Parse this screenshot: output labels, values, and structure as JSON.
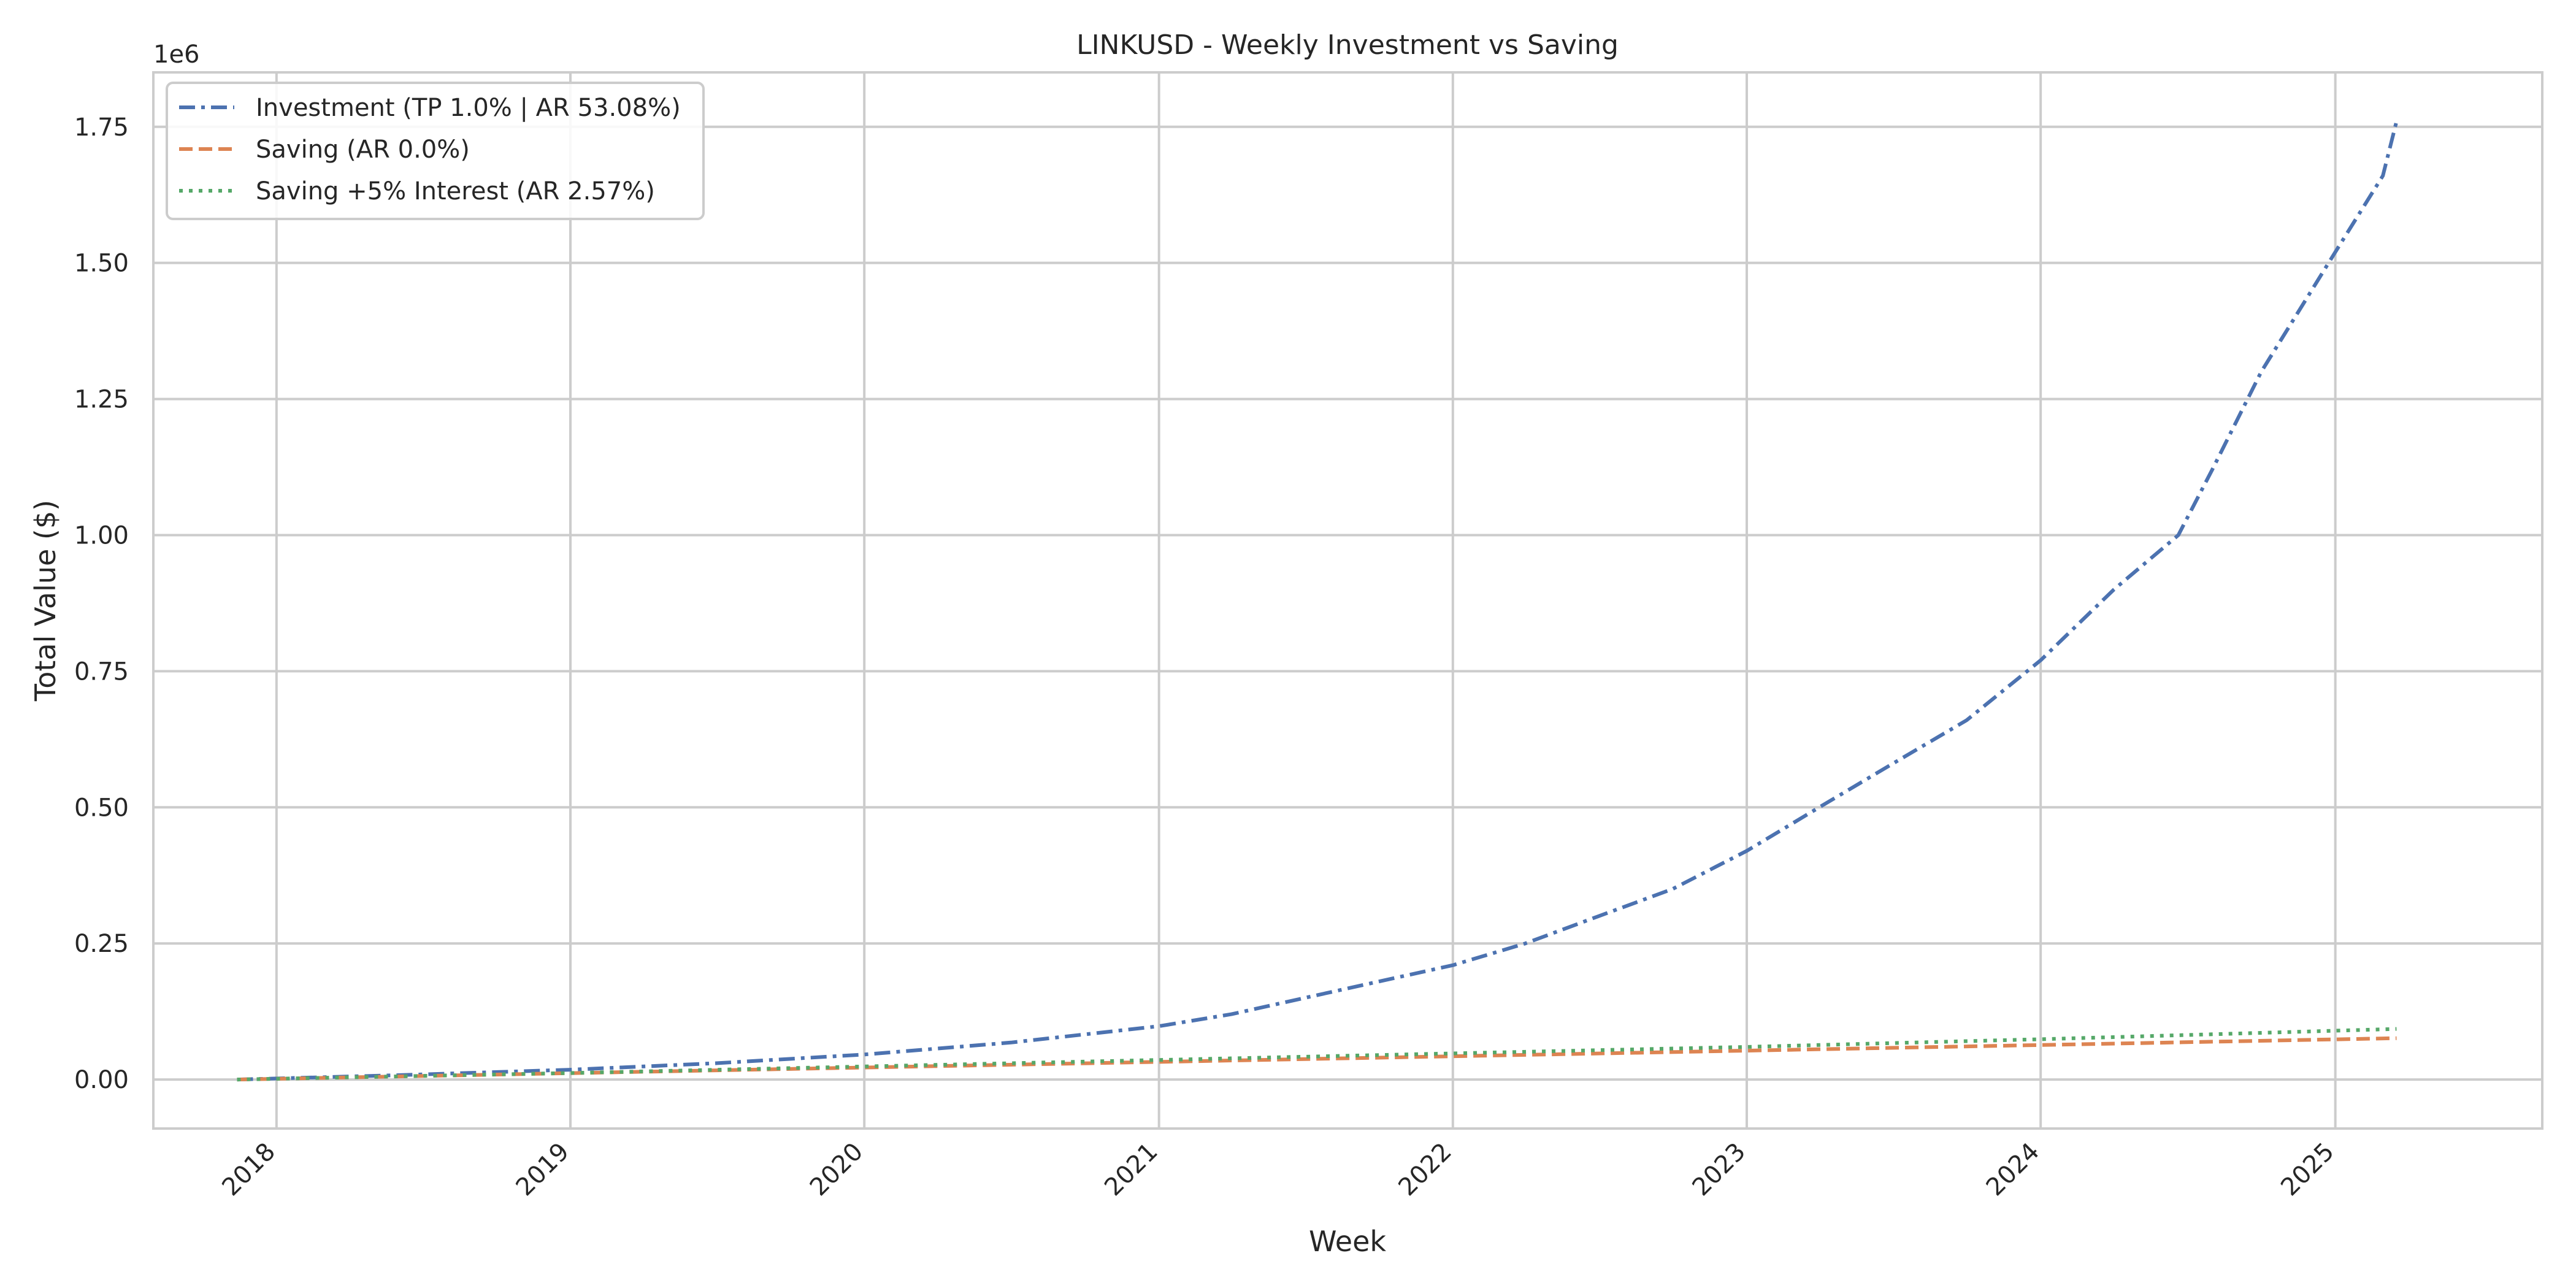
{
  "chart_data": {
    "type": "line",
    "title": "LINKUSD - Weekly Investment vs Saving",
    "xlabel": "Week",
    "ylabel": "Total Value ($)",
    "y_offset_text": "1e6",
    "xlim": [
      "2017-08-01",
      "2025-09-15"
    ],
    "ylim": [
      -0.09,
      1.85
    ],
    "x_ticks": [
      "2018",
      "2019",
      "2020",
      "2021",
      "2022",
      "2023",
      "2024",
      "2025"
    ],
    "y_ticks": [
      "0.00",
      "0.25",
      "0.50",
      "0.75",
      "1.00",
      "1.25",
      "1.50",
      "1.75"
    ],
    "grid": true,
    "legend_position": "top-left",
    "series": [
      {
        "name": "Investment (TP 1.0% | AR 53.08%)",
        "color": "#4c72b0",
        "style": "dashdot",
        "x": [
          "2017-11-13",
          "2018-06-01",
          "2019-01-01",
          "2019-07-01",
          "2020-01-01",
          "2020-07-01",
          "2021-01-01",
          "2021-04-01",
          "2021-07-01",
          "2021-10-01",
          "2022-01-01",
          "2022-04-01",
          "2022-07-01",
          "2022-10-01",
          "2023-01-01",
          "2023-04-01",
          "2023-07-01",
          "2023-10-01",
          "2024-01-01",
          "2024-04-01",
          "2024-06-20",
          "2024-08-01",
          "2024-10-01",
          "2025-01-01",
          "2025-03-01",
          "2025-03-18"
        ],
        "y": [
          0.0,
          0.008,
          0.018,
          0.03,
          0.046,
          0.068,
          0.098,
          0.12,
          0.15,
          0.18,
          0.21,
          0.25,
          0.3,
          0.35,
          0.42,
          0.5,
          0.58,
          0.66,
          0.77,
          0.9,
          1.0,
          1.12,
          1.3,
          1.52,
          1.66,
          1.76
        ]
      },
      {
        "name": "Saving (AR 0.0%)",
        "color": "#dd8452",
        "style": "dashed",
        "x": [
          "2017-11-13",
          "2025-03-18"
        ],
        "y": [
          0.0,
          0.076
        ]
      },
      {
        "name": "Saving +5% Interest (AR 2.57%)",
        "color": "#55a868",
        "style": "dotted",
        "x": [
          "2017-11-13",
          "2019-01-01",
          "2020-01-01",
          "2021-01-01",
          "2022-01-01",
          "2023-01-01",
          "2024-01-01",
          "2025-03-18"
        ],
        "y": [
          0.0,
          0.012,
          0.024,
          0.036,
          0.048,
          0.06,
          0.074,
          0.093
        ]
      }
    ]
  }
}
